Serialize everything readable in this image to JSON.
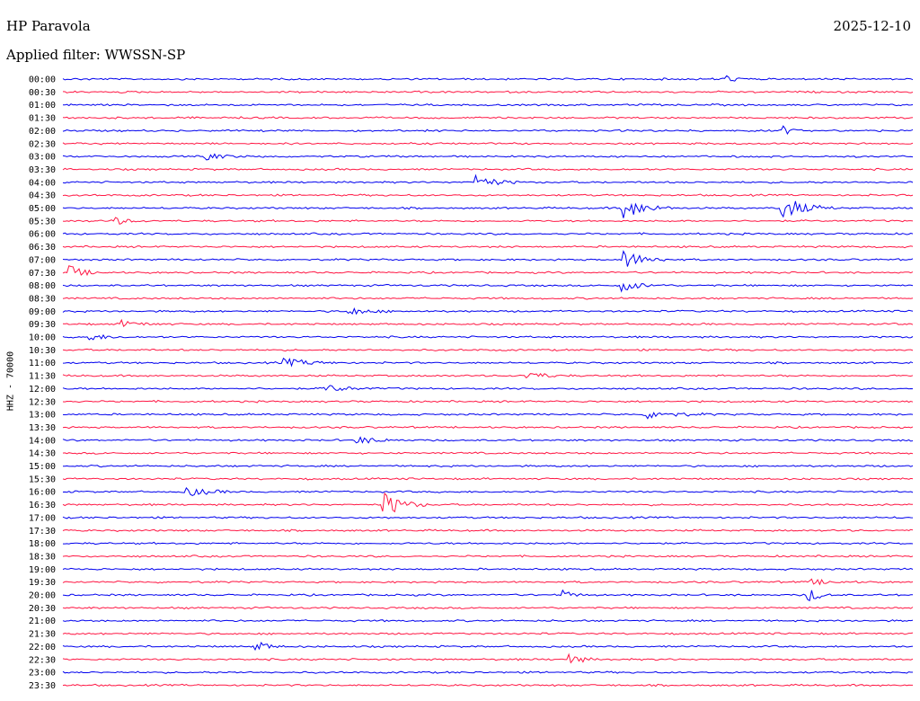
{
  "header": {
    "station": "HP Paravola",
    "filter": "Applied filter: WWSSN-SP",
    "date": "2025-12-10",
    "channel": "HHZ - 70000"
  },
  "colors": {
    "even_trace": "#0000ee",
    "odd_trace": "#ff1744"
  },
  "chart_data": {
    "type": "line",
    "title": "HP Paravola",
    "xlabel": "",
    "ylabel": "HHZ - 70000",
    "rows": [
      "00:00",
      "00:30",
      "01:00",
      "01:30",
      "02:00",
      "02:30",
      "03:00",
      "03:30",
      "04:00",
      "04:30",
      "05:00",
      "05:30",
      "06:00",
      "06:30",
      "07:00",
      "07:30",
      "08:00",
      "08:30",
      "09:00",
      "09:30",
      "10:00",
      "10:30",
      "11:00",
      "11:30",
      "12:00",
      "12:30",
      "13:00",
      "13:30",
      "14:00",
      "14:30",
      "15:00",
      "15:30",
      "16:00",
      "16:30",
      "17:00",
      "17:30",
      "18:00",
      "18:30",
      "19:00",
      "19:30",
      "20:00",
      "20:30",
      "21:00",
      "21:30",
      "22:00",
      "22:30",
      "23:00",
      "23:30"
    ],
    "events": [
      {
        "row": 0,
        "x": 0.78,
        "amp": 0.8,
        "dur": 0.03
      },
      {
        "row": 4,
        "x": 0.85,
        "amp": 0.9,
        "dur": 0.02
      },
      {
        "row": 6,
        "x": 0.17,
        "amp": 0.7,
        "dur": 0.05
      },
      {
        "row": 8,
        "x": 0.49,
        "amp": 1.5,
        "dur": 0.05
      },
      {
        "row": 10,
        "x": 0.66,
        "amp": 2.6,
        "dur": 0.06
      },
      {
        "row": 10,
        "x": 0.85,
        "amp": 2.4,
        "dur": 0.06
      },
      {
        "row": 11,
        "x": 0.06,
        "amp": 0.9,
        "dur": 0.04
      },
      {
        "row": 14,
        "x": 0.66,
        "amp": 2.0,
        "dur": 0.06
      },
      {
        "row": 15,
        "x": 0.01,
        "amp": 1.4,
        "dur": 0.04
      },
      {
        "row": 16,
        "x": 0.66,
        "amp": 1.2,
        "dur": 0.05
      },
      {
        "row": 18,
        "x": 0.34,
        "amp": 0.8,
        "dur": 0.05
      },
      {
        "row": 19,
        "x": 0.07,
        "amp": 0.7,
        "dur": 0.06
      },
      {
        "row": 20,
        "x": 0.03,
        "amp": 0.8,
        "dur": 0.05
      },
      {
        "row": 22,
        "x": 0.26,
        "amp": 0.9,
        "dur": 0.08
      },
      {
        "row": 23,
        "x": 0.55,
        "amp": 0.8,
        "dur": 0.05
      },
      {
        "row": 24,
        "x": 0.31,
        "amp": 0.9,
        "dur": 0.06
      },
      {
        "row": 26,
        "x": 0.69,
        "amp": 0.9,
        "dur": 0.08
      },
      {
        "row": 28,
        "x": 0.35,
        "amp": 0.7,
        "dur": 0.06
      },
      {
        "row": 32,
        "x": 0.15,
        "amp": 0.9,
        "dur": 0.06
      },
      {
        "row": 33,
        "x": 0.38,
        "amp": 2.8,
        "dur": 0.05
      },
      {
        "row": 39,
        "x": 0.88,
        "amp": 0.6,
        "dur": 0.06
      },
      {
        "row": 40,
        "x": 0.88,
        "amp": 1.4,
        "dur": 0.03
      },
      {
        "row": 40,
        "x": 0.59,
        "amp": 0.9,
        "dur": 0.03
      },
      {
        "row": 44,
        "x": 0.23,
        "amp": 1.3,
        "dur": 0.03
      },
      {
        "row": 45,
        "x": 0.6,
        "amp": 1.1,
        "dur": 0.03
      }
    ]
  }
}
